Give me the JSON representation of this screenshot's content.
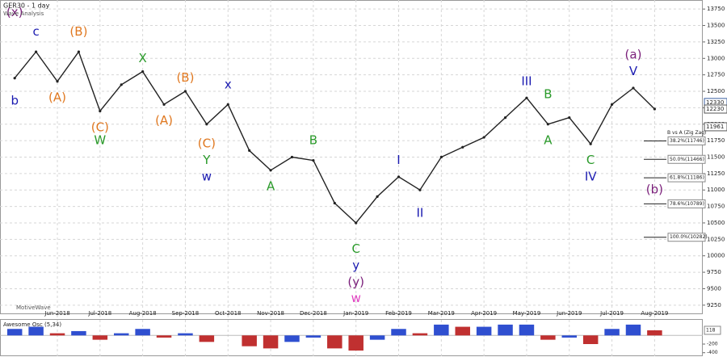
{
  "chart_data": {
    "type": "line",
    "title": "GER30 - 1 day",
    "subtitle": "Wave Analysis",
    "footer": "MotiveWave",
    "categories": [
      null,
      null,
      "Jun-2018",
      null,
      "Jul-2018",
      null,
      "Aug-2018",
      null,
      "Sep-2018",
      null,
      "Oct-2018",
      null,
      "Nov-2018",
      null,
      "Dec-2018",
      null,
      "Jan-2019",
      null,
      "Feb-2019",
      null,
      "Mar-2019",
      null,
      "Apr-2019",
      null,
      "May-2019",
      null,
      "Jun-2019",
      null,
      "Jul-2019",
      null,
      "Aug-2019",
      null
    ],
    "series": [
      {
        "name": "GER30",
        "color": "#222222",
        "values": [
          12700,
          13100,
          12650,
          13100,
          12200,
          12600,
          12800,
          12300,
          12500,
          12000,
          12300,
          11600,
          11300,
          11500,
          11450,
          10800,
          10500,
          10900,
          11200,
          11000,
          11500,
          11650,
          11800,
          12100,
          12400,
          12000,
          12100,
          11700,
          12300,
          12550,
          12230,
          null
        ]
      }
    ],
    "ylim": [
      9125,
      13875
    ],
    "yticks": [
      9250,
      9500,
      9750,
      10000,
      10250,
      10500,
      10750,
      11000,
      11250,
      11500,
      11750,
      12000,
      12250,
      12500,
      12750,
      13000,
      13250,
      13500,
      13750
    ],
    "grid": true,
    "annotations": [
      {
        "text": "b",
        "color": "#1a1ab0",
        "index": 0,
        "y": 12350
      },
      {
        "text": "c",
        "color": "#1a1ab0",
        "index": 1,
        "y": 13400
      },
      {
        "text": "(x)",
        "color": "#7a1f7a",
        "index": 0,
        "y": 13700
      },
      {
        "text": "(A)",
        "color": "#e07820",
        "index": 2,
        "y": 12400
      },
      {
        "text": "(B)",
        "color": "#e07820",
        "index": 3,
        "y": 13400
      },
      {
        "text": "(C)",
        "color": "#e07820",
        "index": 4,
        "y": 11950
      },
      {
        "text": "W",
        "color": "#2a9a2a",
        "index": 4,
        "y": 11750
      },
      {
        "text": "X",
        "color": "#2a9a2a",
        "index": 6,
        "y": 13000
      },
      {
        "text": "(A)",
        "color": "#e07820",
        "index": 7,
        "y": 12050
      },
      {
        "text": "(B)",
        "color": "#e07820",
        "index": 8,
        "y": 12700
      },
      {
        "text": "(C)",
        "color": "#e07820",
        "index": 9,
        "y": 11700
      },
      {
        "text": "Y",
        "color": "#2a9a2a",
        "index": 9,
        "y": 11450
      },
      {
        "text": "w",
        "color": "#1a1ab0",
        "index": 9,
        "y": 11200
      },
      {
        "text": "x",
        "color": "#1a1ab0",
        "index": 10,
        "y": 12600
      },
      {
        "text": "A",
        "color": "#2a9a2a",
        "index": 12,
        "y": 11050
      },
      {
        "text": "B",
        "color": "#2a9a2a",
        "index": 14,
        "y": 11750
      },
      {
        "text": "C",
        "color": "#2a9a2a",
        "index": 16,
        "y": 10100
      },
      {
        "text": "y",
        "color": "#1a1ab0",
        "index": 16,
        "y": 9850
      },
      {
        "text": "(y)",
        "color": "#7a1f7a",
        "index": 16,
        "y": 9600
      },
      {
        "text": "w",
        "color": "#e040c0",
        "index": 16,
        "y": 9350
      },
      {
        "text": "I",
        "color": "#1a1ab0",
        "index": 18,
        "y": 11450
      },
      {
        "text": "II",
        "color": "#1a1ab0",
        "index": 19,
        "y": 10650
      },
      {
        "text": "III",
        "color": "#1a1ab0",
        "index": 24,
        "y": 12650
      },
      {
        "text": "B",
        "color": "#2a9a2a",
        "index": 25,
        "y": 12450
      },
      {
        "text": "A",
        "color": "#2a9a2a",
        "index": 25,
        "y": 11750
      },
      {
        "text": "C",
        "color": "#2a9a2a",
        "index": 27,
        "y": 11450
      },
      {
        "text": "IV",
        "color": "#1a1ab0",
        "index": 27,
        "y": 11200
      },
      {
        "text": "V",
        "color": "#1a1ab0",
        "index": 29,
        "y": 12800
      },
      {
        "text": "(a)",
        "color": "#7a1f7a",
        "index": 29,
        "y": 13050
      },
      {
        "text": "(b)",
        "color": "#7a1f7a",
        "index": 30,
        "y": 11000
      }
    ],
    "fib_title": "B vs A (Zig Zag)",
    "fib_levels": [
      {
        "label": "38.2%(11746)",
        "value": 11746
      },
      {
        "label": "50.0%(11466)",
        "value": 11466
      },
      {
        "label": "61.8%(11186)",
        "value": 11186
      },
      {
        "label": "78.6%(10789)",
        "value": 10789
      },
      {
        "label": "100.0%(10282)",
        "value": 10282
      }
    ],
    "price_labels": [
      {
        "label": "12330",
        "value": 12330,
        "color": "#3a5fa0"
      },
      {
        "label": "12230",
        "value": 12230,
        "color": "#555555"
      },
      {
        "label": "11961",
        "value": 11961,
        "color": "#555555"
      }
    ],
    "oscillator": {
      "name": "Awesome Osc (5,34)",
      "values": [
        150,
        200,
        50,
        100,
        -100,
        50,
        150,
        -50,
        50,
        -150,
        0,
        -250,
        -300,
        -150,
        -50,
        -300,
        -350,
        -100,
        150,
        50,
        250,
        200,
        200,
        250,
        250,
        -100,
        -50,
        -200,
        150,
        250,
        118,
        null
      ],
      "current": 118,
      "ylim": [
        -480,
        360
      ],
      "yticks": [
        -200,
        -400
      ],
      "up_color": "#2f4fd0",
      "down_color": "#c03030"
    }
  }
}
